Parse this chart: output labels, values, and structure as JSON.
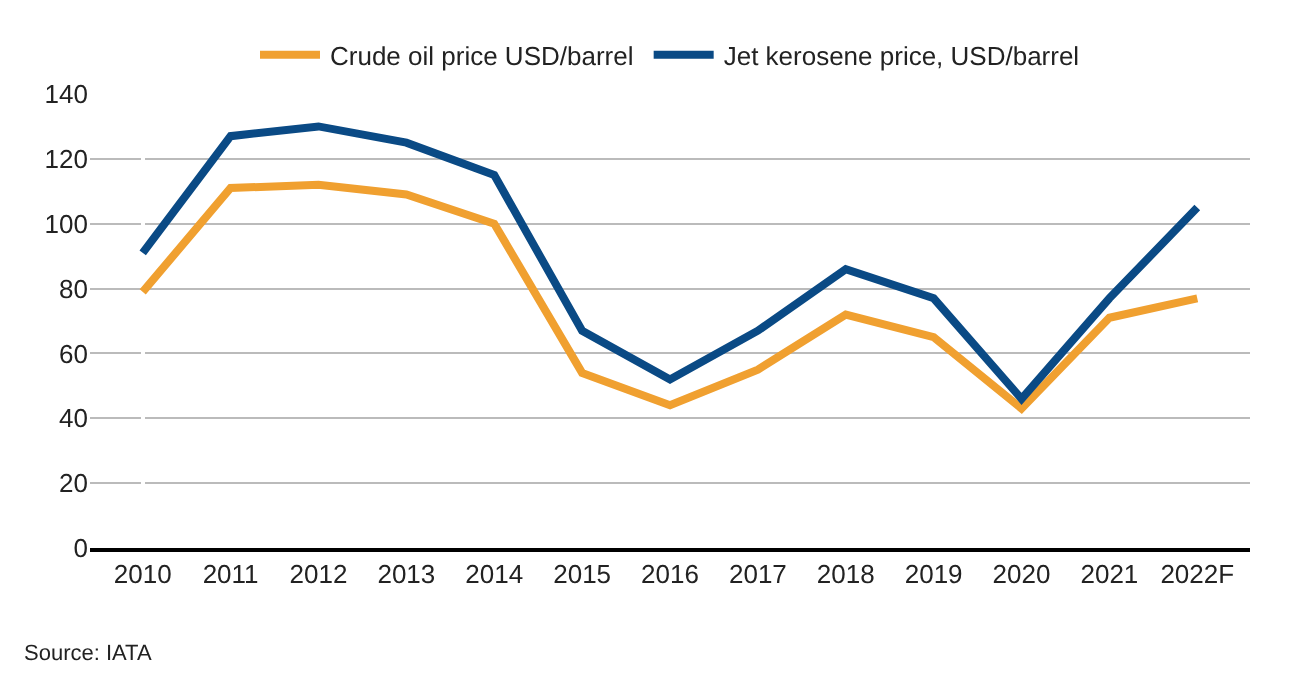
{
  "chart_data": {
    "type": "line",
    "categories": [
      "2010",
      "2011",
      "2012",
      "2013",
      "2014",
      "2015",
      "2016",
      "2017",
      "2018",
      "2019",
      "2020",
      "2021",
      "2022F"
    ],
    "series": [
      {
        "name": "Crude oil price USD/barrel",
        "color": "#f0a030",
        "values": [
          79,
          111,
          112,
          109,
          100,
          54,
          44,
          55,
          72,
          65,
          43,
          71,
          77
        ]
      },
      {
        "name": "Jet kerosene price, USD/barrel",
        "color": "#0a4a85",
        "values": [
          91,
          127,
          130,
          125,
          115,
          67,
          52,
          67,
          86,
          77,
          46,
          77,
          105
        ]
      }
    ],
    "ylim": [
      0,
      140
    ],
    "yticks": [
      0,
      20,
      40,
      60,
      80,
      100,
      120,
      140
    ],
    "grid": "y",
    "legend": "top",
    "marker": "none",
    "line_style": "solid",
    "annotations": [
      "Source: IATA"
    ]
  }
}
